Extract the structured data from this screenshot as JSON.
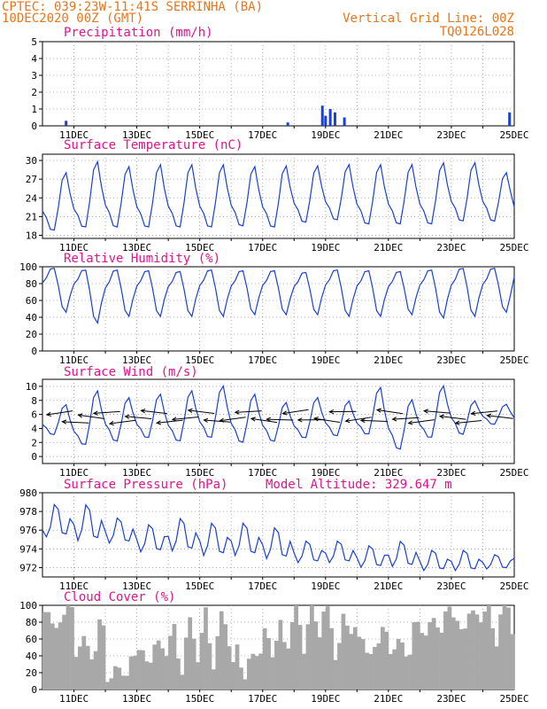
{
  "header": {
    "line1_left": "CPTEC:   039:23W-11:41S   SERRINHA (BA)",
    "line2_left": "10DEC2020 00Z (GMT)",
    "line2_right": "Vertical Grid Line: 00Z",
    "line3_right": "TQ0126L028"
  },
  "colors": {
    "header": "#e8761c",
    "title": "#e0148c",
    "line": "#1a3fd6",
    "bar": "#1a3fd6",
    "cloud": "#a8a8a8",
    "grid": "#9a9a9a"
  },
  "chart_data": [
    {
      "type": "bar",
      "title": "Precipitation (mm/h)",
      "ylim": [
        0,
        5
      ],
      "yticks": [
        0,
        1,
        2,
        3,
        4,
        5
      ],
      "xticks": [
        "11DEC",
        "13DEC",
        "15DEC",
        "17DEC",
        "19DEC",
        "21DEC",
        "23DEC",
        "25DEC"
      ],
      "x_start": "10DEC2020 00Z",
      "x_end": "25DEC2020 00Z",
      "grid": true,
      "points": [
        {
          "day": 0.75,
          "value": 0.3
        },
        {
          "day": 7.8,
          "value": 0.2
        },
        {
          "day": 8.9,
          "value": 1.2
        },
        {
          "day": 9.0,
          "value": 0.6
        },
        {
          "day": 9.15,
          "value": 1.0
        },
        {
          "day": 9.3,
          "value": 0.8
        },
        {
          "day": 9.6,
          "value": 0.5
        },
        {
          "day": 14.85,
          "value": 0.8
        }
      ]
    },
    {
      "type": "line",
      "title": "Surface Temperature (nC)",
      "ylim": [
        17.5,
        31
      ],
      "yticks": [
        18,
        21,
        24,
        27,
        30
      ],
      "xticks": [
        "11DEC",
        "13DEC",
        "15DEC",
        "17DEC",
        "19DEC",
        "21DEC",
        "23DEC",
        "25DEC"
      ],
      "grid": true,
      "daily_min": [
        18.5,
        19.0,
        19.0,
        19.0,
        19.0,
        19.0,
        19.2,
        19.0,
        19.8,
        20.2,
        19.5,
        19.5,
        19.5,
        20.0,
        20.0
      ],
      "daily_max": [
        28.2,
        30.0,
        29.2,
        29.5,
        29.5,
        29.5,
        29.2,
        29.3,
        29.3,
        29.5,
        29.5,
        29.5,
        29.8,
        29.8,
        28.2
      ],
      "end_value": 22.5
    },
    {
      "type": "line",
      "title": "Relative Humidity (%)",
      "ylim": [
        0,
        100
      ],
      "yticks": [
        0,
        20,
        40,
        60,
        80,
        100
      ],
      "xticks": [
        "11DEC",
        "13DEC",
        "15DEC",
        "17DEC",
        "19DEC",
        "21DEC",
        "23DEC",
        "25DEC"
      ],
      "grid": true,
      "daily_max": [
        100,
        98,
        98,
        97,
        96,
        98,
        97,
        97,
        95,
        98,
        97,
        96,
        98,
        100,
        100
      ],
      "daily_min": [
        45,
        32,
        40,
        40,
        40,
        40,
        42,
        42,
        42,
        40,
        40,
        42,
        38,
        40,
        45
      ],
      "end_value": 88
    },
    {
      "type": "line",
      "title": "Surface Wind (m/s)",
      "ylim": [
        -1,
        11
      ],
      "yticks": [
        0,
        2,
        4,
        6,
        8,
        10
      ],
      "xticks": [
        "11DEC",
        "13DEC",
        "15DEC",
        "17DEC",
        "19DEC",
        "21DEC",
        "23DEC",
        "25DEC"
      ],
      "grid": true,
      "daily_max": [
        7.5,
        9.5,
        8.5,
        9.0,
        9.5,
        10.2,
        9.0,
        7.8,
        8.5,
        8.0,
        10.0,
        8.2,
        10.2,
        8.0,
        7.5
      ],
      "daily_min": [
        3.0,
        1.5,
        2.0,
        2.5,
        2.0,
        2.5,
        1.8,
        2.0,
        2.5,
        2.8,
        3.0,
        0.8,
        2.5,
        3.0,
        4.5
      ],
      "end_value": 5.5,
      "vector_direction": "from east (arrows pointing west)"
    },
    {
      "type": "line",
      "title": "Surface Pressure (hPa)",
      "annotation": "Model Altitude: 329.647 m",
      "ylim": [
        971,
        980
      ],
      "yticks": [
        972,
        974,
        976,
        978,
        980
      ],
      "xticks": [
        "11DEC",
        "13DEC",
        "15DEC",
        "17DEC",
        "19DEC",
        "21DEC",
        "23DEC",
        "25DEC"
      ],
      "grid": true,
      "daily_max": [
        979.0,
        979.0,
        977.5,
        976.8,
        977.5,
        977.0,
        977.0,
        976.5,
        975.0,
        975.0,
        974.5,
        975.0,
        974.0,
        974.0,
        973.5
      ],
      "daily_min": [
        974.5,
        974.0,
        974.0,
        973.0,
        973.0,
        972.5,
        972.5,
        972.2,
        972.0,
        972.0,
        971.5,
        971.5,
        971.2,
        971.2,
        971.5
      ],
      "start_value": 976.0,
      "end_value": 973.0
    },
    {
      "type": "bar",
      "title": "Cloud Cover (%)",
      "ylim": [
        0,
        100
      ],
      "yticks": [
        0,
        20,
        40,
        60,
        80,
        100
      ],
      "xticks": [
        "11DEC",
        "13DEC",
        "15DEC",
        "17DEC",
        "19DEC",
        "21DEC",
        "23DEC",
        "25DEC"
      ],
      "grid": true,
      "daily_cover": [
        92,
        60,
        30,
        52,
        60,
        70,
        40,
        68,
        88,
        75,
        60,
        60,
        85,
        90,
        92
      ]
    }
  ]
}
